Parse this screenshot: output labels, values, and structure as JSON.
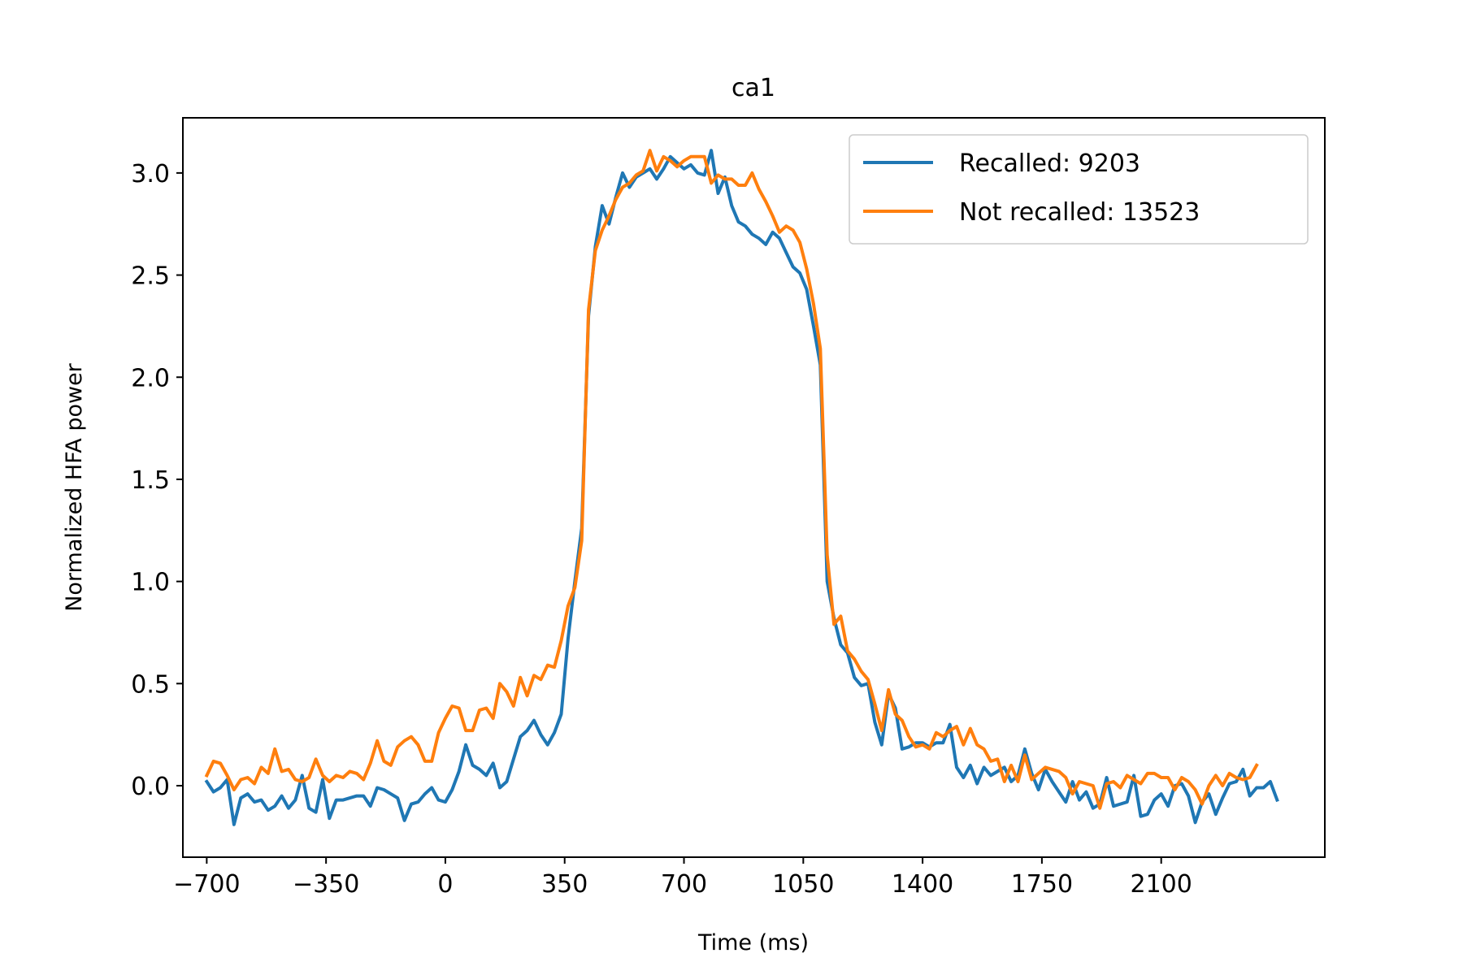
{
  "chart_data": {
    "type": "line",
    "title": "ca1",
    "xlabel": "Time (ms)",
    "ylabel": "Normalized HFA power",
    "xlim": [
      -770,
      2580
    ],
    "ylim": [
      -0.35,
      3.27
    ],
    "xticks": [
      -700,
      -350,
      0,
      350,
      700,
      1050,
      1400,
      1750,
      2100
    ],
    "xtick_labels": [
      "−700",
      "−350",
      "0",
      "350",
      "700",
      "1050",
      "1400",
      "1750",
      "2100"
    ],
    "yticks": [
      0.0,
      0.5,
      1.0,
      1.5,
      2.0,
      2.5,
      3.0
    ],
    "ytick_labels": [
      "0.0",
      "0.5",
      "1.0",
      "1.5",
      "2.0",
      "2.5",
      "3.0"
    ],
    "grid": false,
    "legend_position": "upper right",
    "x_start": -700,
    "x_step": 20,
    "series": [
      {
        "name": "Recalled: 9203",
        "color": "#1f77b4",
        "values": [
          0.02,
          -0.03,
          -0.01,
          0.03,
          -0.19,
          -0.06,
          -0.04,
          -0.08,
          -0.07,
          -0.12,
          -0.1,
          -0.05,
          -0.11,
          -0.07,
          0.05,
          -0.11,
          -0.13,
          0.03,
          -0.16,
          -0.07,
          -0.07,
          -0.06,
          -0.05,
          -0.05,
          -0.1,
          -0.01,
          -0.02,
          -0.04,
          -0.06,
          -0.17,
          -0.09,
          -0.08,
          -0.04,
          -0.01,
          -0.07,
          -0.08,
          -0.02,
          0.07,
          0.2,
          0.1,
          0.08,
          0.05,
          0.11,
          -0.01,
          0.02,
          0.13,
          0.24,
          0.27,
          0.32,
          0.25,
          0.2,
          0.26,
          0.35,
          0.72,
          1.0,
          1.26,
          2.3,
          2.64,
          2.84,
          2.75,
          2.88,
          3.0,
          2.93,
          2.98,
          3.0,
          3.02,
          2.97,
          3.02,
          3.08,
          3.05,
          3.02,
          3.04,
          3.0,
          2.99,
          3.11,
          2.9,
          2.98,
          2.84,
          2.76,
          2.74,
          2.7,
          2.68,
          2.65,
          2.71,
          2.68,
          2.61,
          2.54,
          2.51,
          2.43,
          2.25,
          2.06,
          1.0,
          0.82,
          0.69,
          0.65,
          0.53,
          0.49,
          0.5,
          0.31,
          0.2,
          0.45,
          0.38,
          0.18,
          0.19,
          0.21,
          0.21,
          0.19,
          0.21,
          0.21,
          0.3,
          0.09,
          0.04,
          0.1,
          0.01,
          0.09,
          0.05,
          0.07,
          0.09,
          0.02,
          0.05,
          0.18,
          0.06,
          -0.02,
          0.08,
          0.02,
          -0.03,
          -0.08,
          0.02,
          -0.07,
          -0.03,
          -0.11,
          -0.09,
          0.04,
          -0.1,
          -0.09,
          -0.08,
          0.05,
          -0.15,
          -0.14,
          -0.07,
          -0.04,
          -0.1,
          0.0,
          0.01,
          -0.05,
          -0.18,
          -0.08,
          -0.04,
          -0.14,
          -0.06,
          0.01,
          0.02,
          0.08,
          -0.05,
          -0.01,
          -0.01,
          0.02,
          -0.07
        ]
      },
      {
        "name": "Not recalled: 13523",
        "color": "#ff7f0e",
        "values": [
          0.05,
          0.12,
          0.11,
          0.05,
          -0.02,
          0.03,
          0.04,
          0.01,
          0.09,
          0.06,
          0.18,
          0.07,
          0.08,
          0.03,
          0.02,
          0.04,
          0.13,
          0.05,
          0.02,
          0.05,
          0.04,
          0.07,
          0.06,
          0.03,
          0.11,
          0.22,
          0.12,
          0.1,
          0.19,
          0.22,
          0.24,
          0.2,
          0.12,
          0.12,
          0.26,
          0.33,
          0.39,
          0.38,
          0.27,
          0.27,
          0.37,
          0.38,
          0.33,
          0.5,
          0.46,
          0.39,
          0.53,
          0.44,
          0.54,
          0.52,
          0.59,
          0.58,
          0.71,
          0.88,
          0.97,
          1.2,
          2.33,
          2.62,
          2.72,
          2.79,
          2.87,
          2.93,
          2.95,
          2.99,
          3.01,
          3.11,
          3.01,
          3.08,
          3.06,
          3.03,
          3.06,
          3.08,
          3.08,
          3.08,
          2.95,
          2.99,
          2.97,
          2.97,
          2.94,
          2.94,
          3.0,
          2.92,
          2.86,
          2.79,
          2.71,
          2.74,
          2.72,
          2.66,
          2.53,
          2.36,
          2.14,
          1.13,
          0.79,
          0.83,
          0.66,
          0.62,
          0.56,
          0.52,
          0.4,
          0.27,
          0.47,
          0.35,
          0.32,
          0.24,
          0.19,
          0.2,
          0.18,
          0.26,
          0.24,
          0.27,
          0.29,
          0.2,
          0.28,
          0.2,
          0.18,
          0.12,
          0.13,
          0.02,
          0.1,
          0.02,
          0.15,
          0.03,
          0.06,
          0.09,
          0.08,
          0.07,
          0.04,
          -0.04,
          0.02,
          0.01,
          0.0,
          -0.11,
          0.01,
          0.02,
          -0.01,
          0.05,
          0.03,
          0.01,
          0.06,
          0.06,
          0.04,
          0.04,
          -0.02,
          0.04,
          0.02,
          -0.02,
          -0.09,
          0.0,
          0.05,
          0.0,
          0.06,
          0.04,
          0.03,
          0.04,
          0.1
        ]
      }
    ]
  }
}
